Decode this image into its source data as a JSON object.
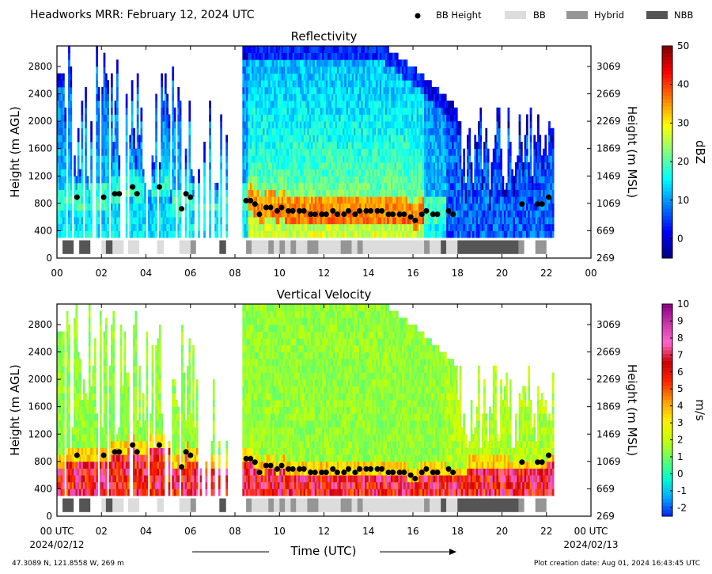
{
  "figure": {
    "title": "Headworks MRR:  February 12, 2024 UTC",
    "legend": [
      {
        "label": "BB Height",
        "marker": "dot",
        "color": "#000000"
      },
      {
        "label": "BB",
        "marker": "box",
        "color": "#dcdcdc"
      },
      {
        "label": "Hybrid",
        "marker": "box",
        "color": "#959595"
      },
      {
        "label": "NBB",
        "marker": "box",
        "color": "#555555"
      }
    ],
    "xlabel": "Time (UTC)",
    "start_date": "2024/02/12",
    "end_date": "2024/02/13",
    "footer_location": "47.3089 N, 121.8558 W, 269 m",
    "footer_created": "Plot creation date: Aug 01, 2024 16:43:45 UTC"
  },
  "chart_data": [
    {
      "type": "heatmap",
      "title": "Reflectivity",
      "ylabel_left": "Height (m AGL)",
      "ylabel_right": "Height (m MSL)",
      "x_ticks": [
        "00",
        "02",
        "04",
        "06",
        "08",
        "10",
        "12",
        "14",
        "16",
        "18",
        "20",
        "22",
        "00"
      ],
      "y_ticks_left": [
        "0",
        "400",
        "800",
        "1200",
        "1600",
        "2000",
        "2400",
        "2800"
      ],
      "y_ticks_right": [
        "269",
        "669",
        "1069",
        "1469",
        "1869",
        "2269",
        "2669",
        "3069"
      ],
      "xlim_hours": [
        0,
        24
      ],
      "ylim_m_agl": [
        0,
        3100
      ],
      "colorbar": {
        "label": "dBZ",
        "min": -5,
        "max": 50,
        "ticks": [
          "0",
          "10",
          "20",
          "30",
          "40",
          "50"
        ],
        "tick_values": [
          0,
          10,
          20,
          30,
          40,
          50
        ],
        "colors": [
          "#00007f",
          "#0000ff",
          "#007fff",
          "#00ffff",
          "#7fff7f",
          "#ffff00",
          "#ff7f00",
          "#ff0000",
          "#7f0000"
        ]
      }
    },
    {
      "type": "heatmap",
      "title": "Vertical Velocity",
      "ylabel_left": "Height (m AGL)",
      "ylabel_right": "Height (m MSL)",
      "x_ticks": [
        "00 UTC",
        "02",
        "04",
        "06",
        "08",
        "10",
        "12",
        "14",
        "16",
        "18",
        "20",
        "22",
        "00 UTC"
      ],
      "y_ticks_left": [
        "0",
        "400",
        "800",
        "1200",
        "1600",
        "2000",
        "2400",
        "2800"
      ],
      "y_ticks_right": [
        "269",
        "669",
        "1069",
        "1469",
        "1869",
        "2269",
        "2669",
        "3069"
      ],
      "xlim_hours": [
        0,
        24
      ],
      "ylim_m_agl": [
        0,
        3100
      ],
      "colorbar": {
        "label": "m/s",
        "min": -2.5,
        "max": 10,
        "ticks": [
          "-2",
          "-1",
          "0",
          "1",
          "2",
          "3",
          "4",
          "5",
          "6",
          "7",
          "8",
          "9",
          "10"
        ],
        "tick_values": [
          -2,
          -1,
          0,
          1,
          2,
          3,
          4,
          5,
          6,
          7,
          8,
          9,
          10
        ],
        "colors": [
          "#0022ff",
          "#00aaff",
          "#00ffcc",
          "#66ff66",
          "#ccff00",
          "#ffee00",
          "#ff9900",
          "#ff2200",
          "#cc0000",
          "#ff66cc",
          "#cc33aa",
          "#880088"
        ]
      }
    }
  ],
  "bb_heights": {
    "hours": [
      0.9,
      2.1,
      2.6,
      2.8,
      3.4,
      3.6,
      4.6,
      5.6,
      5.8,
      6.0,
      8.5,
      8.7,
      8.9,
      9.1,
      9.4,
      9.6,
      9.9,
      10.1,
      10.4,
      10.6,
      10.9,
      11.1,
      11.4,
      11.6,
      11.9,
      12.1,
      12.4,
      12.6,
      12.9,
      13.1,
      13.4,
      13.6,
      13.9,
      14.1,
      14.4,
      14.6,
      14.9,
      15.1,
      15.4,
      15.6,
      15.9,
      16.1,
      16.4,
      16.6,
      16.9,
      17.1,
      17.6,
      17.8,
      20.9,
      21.6,
      21.8,
      22.1
    ],
    "heights_m_agl": [
      890,
      890,
      940,
      940,
      1040,
      940,
      1040,
      720,
      940,
      890,
      840,
      840,
      790,
      640,
      740,
      740,
      690,
      740,
      690,
      690,
      690,
      690,
      640,
      640,
      640,
      640,
      690,
      640,
      640,
      690,
      640,
      690,
      690,
      690,
      690,
      690,
      640,
      640,
      640,
      640,
      600,
      550,
      640,
      690,
      640,
      640,
      690,
      640,
      790,
      790,
      790,
      890
    ]
  },
  "bb_type_segments": [
    {
      "start": 0.25,
      "end": 0.75,
      "type": "NBB"
    },
    {
      "start": 1.0,
      "end": 1.5,
      "type": "NBB"
    },
    {
      "start": 2.0,
      "end": 2.2,
      "type": "BB"
    },
    {
      "start": 2.2,
      "end": 2.5,
      "type": "NBB"
    },
    {
      "start": 2.5,
      "end": 3.0,
      "type": "BB"
    },
    {
      "start": 3.2,
      "end": 3.7,
      "type": "BB"
    },
    {
      "start": 4.5,
      "end": 4.8,
      "type": "BB"
    },
    {
      "start": 5.5,
      "end": 6.0,
      "type": "BB"
    },
    {
      "start": 6.0,
      "end": 6.25,
      "type": "Hybrid"
    },
    {
      "start": 7.3,
      "end": 7.6,
      "type": "NBB"
    },
    {
      "start": 8.5,
      "end": 8.75,
      "type": "Hybrid"
    },
    {
      "start": 8.75,
      "end": 9.5,
      "type": "BB"
    },
    {
      "start": 9.5,
      "end": 9.75,
      "type": "Hybrid"
    },
    {
      "start": 9.75,
      "end": 10.0,
      "type": "BB"
    },
    {
      "start": 10.0,
      "end": 10.25,
      "type": "Hybrid"
    },
    {
      "start": 10.25,
      "end": 10.5,
      "type": "BB"
    },
    {
      "start": 10.5,
      "end": 10.75,
      "type": "Hybrid"
    },
    {
      "start": 10.75,
      "end": 11.25,
      "type": "BB"
    },
    {
      "start": 11.25,
      "end": 11.75,
      "type": "Hybrid"
    },
    {
      "start": 11.75,
      "end": 12.75,
      "type": "BB"
    },
    {
      "start": 12.75,
      "end": 13.25,
      "type": "Hybrid"
    },
    {
      "start": 13.25,
      "end": 13.5,
      "type": "BB"
    },
    {
      "start": 13.5,
      "end": 13.75,
      "type": "Hybrid"
    },
    {
      "start": 13.75,
      "end": 16.5,
      "type": "BB"
    },
    {
      "start": 16.5,
      "end": 16.75,
      "type": "Hybrid"
    },
    {
      "start": 16.75,
      "end": 17.25,
      "type": "BB"
    },
    {
      "start": 17.25,
      "end": 17.5,
      "type": "NBB"
    },
    {
      "start": 17.5,
      "end": 18.0,
      "type": "BB"
    },
    {
      "start": 18.0,
      "end": 20.75,
      "type": "NBB"
    },
    {
      "start": 20.75,
      "end": 21.0,
      "type": "Hybrid"
    },
    {
      "start": 21.5,
      "end": 22.0,
      "type": "Hybrid"
    }
  ]
}
